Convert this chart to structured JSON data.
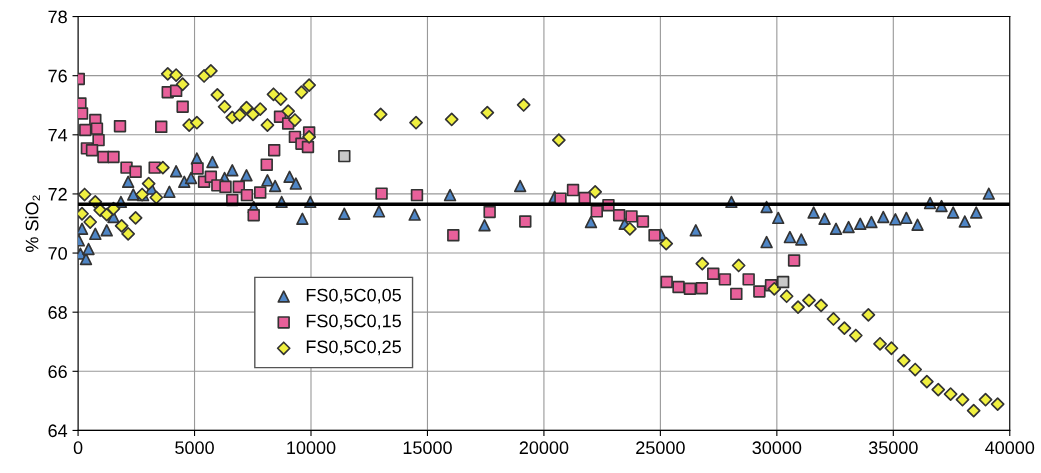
{
  "chart_data": {
    "type": "scatter",
    "ylabel": "% SiO₂",
    "xlim": [
      0,
      40000
    ],
    "xticks": [
      0,
      5000,
      10000,
      15000,
      20000,
      25000,
      30000,
      35000,
      40000
    ],
    "ylim": [
      64,
      78
    ],
    "yticks": [
      64,
      66,
      68,
      70,
      72,
      74,
      76,
      78
    ],
    "grid": true,
    "legend": "bottom left",
    "ref_lines": [
      {
        "axis": "y",
        "value": 71.65,
        "color": "#000000",
        "line_style": "solid"
      }
    ],
    "series": [
      {
        "name": "FS0,5C0,05",
        "color": "#4f86c6",
        "marker": "triangle",
        "x": [
          30,
          100,
          340,
          450,
          170,
          740,
          1230,
          1520,
          1840,
          2150,
          2370,
          2790,
          3150,
          3920,
          4210,
          4560,
          4850,
          5100,
          5770,
          6290,
          6620,
          7230,
          7540,
          8130,
          8460,
          8740,
          9080,
          9350,
          9630,
          9970,
          11430,
          12920,
          14450,
          15970,
          17450,
          18980,
          20460,
          22020,
          23470,
          25030,
          26520,
          28050,
          29560,
          29560,
          30060,
          30560,
          31050,
          31580,
          32050,
          32540,
          33080,
          33580,
          34060,
          34570,
          35090,
          35560,
          36040,
          36580,
          37070,
          37570,
          38070,
          38560,
          39100
        ],
        "values": [
          70.43,
          69.98,
          69.8,
          70.14,
          70.82,
          70.65,
          70.77,
          71.22,
          71.73,
          72.41,
          71.98,
          71.96,
          72.18,
          72.07,
          72.77,
          72.41,
          72.54,
          73.2,
          73.08,
          72.54,
          72.8,
          72.63,
          71.56,
          72.46,
          72.27,
          71.73,
          72.58,
          72.35,
          71.16,
          71.73,
          71.33,
          71.41,
          71.3,
          71.96,
          70.94,
          72.27,
          71.9,
          71.05,
          70.99,
          70.62,
          70.77,
          71.73,
          71.56,
          70.37,
          71.19,
          70.54,
          70.46,
          71.37,
          71.16,
          70.82,
          70.88,
          70.99,
          71.05,
          71.22,
          71.14,
          71.19,
          70.96,
          71.69,
          71.59,
          71.37,
          71.07,
          71.37,
          72.01
        ]
      },
      {
        "name": "FS0,5C0,15",
        "color": "#e8609a",
        "marker": "square",
        "x": [
          30,
          100,
          170,
          740,
          810,
          880,
          310,
          380,
          600,
          1800,
          1090,
          1520,
          2080,
          2470,
          3570,
          3290,
          3850,
          4210,
          4490,
          5130,
          5410,
          5700,
          5980,
          6330,
          6900,
          6620,
          7250,
          7820,
          7540,
          8100,
          8420,
          8670,
          9020,
          9310,
          9590,
          9870,
          9920,
          13030,
          14550,
          16110,
          17670,
          19200,
          20710,
          21250,
          21750,
          22270,
          22770,
          23230,
          23760,
          24250,
          24750,
          25270,
          25780,
          26270,
          26780,
          27270,
          27770,
          28260,
          28790,
          29250,
          29750,
          30740
        ],
        "values": [
          75.89,
          75.06,
          74.72,
          74.5,
          74.21,
          73.82,
          74.16,
          73.54,
          73.48,
          74.29,
          73.25,
          73.25,
          72.89,
          72.75,
          74.27,
          72.89,
          75.44,
          75.49,
          74.95,
          72.86,
          72.41,
          72.58,
          72.29,
          72.24,
          72.24,
          71.79,
          71.96,
          72.05,
          71.28,
          72.99,
          73.48,
          74.61,
          74.38,
          73.93,
          73.7,
          73.59,
          74.08,
          72.01,
          71.96,
          70.6,
          71.39,
          71.07,
          71.84,
          72.13,
          71.86,
          71.41,
          71.62,
          71.28,
          71.24,
          71.07,
          70.6,
          69.02,
          68.85,
          68.79,
          68.81,
          69.3,
          69.11,
          68.62,
          69.11,
          68.7,
          68.91,
          69.75
        ]
      },
      {
        "name": "FS0,5C0,25",
        "color": "#f0f040",
        "marker": "diamond",
        "x": [
          3850,
          4210,
          4490,
          5410,
          5700,
          5980,
          6290,
          6620,
          6940,
          7230,
          7510,
          7820,
          8130,
          8390,
          8700,
          9020,
          9310,
          9590,
          9920,
          9920,
          4770,
          5100,
          3640,
          3030,
          2750,
          3360,
          2470,
          2150,
          1870,
          280,
          740,
          950,
          1230,
          1520,
          520,
          170,
          12990,
          14510,
          16040,
          17570,
          19130,
          20640,
          22200,
          23690,
          25250,
          26800,
          28360,
          29890,
          30420,
          30910,
          31380,
          31900,
          32430,
          32900,
          33390,
          33930,
          34430,
          34920,
          35450,
          35940,
          36440,
          36930,
          37460,
          37970,
          38450,
          38960,
          39480
        ],
        "values": [
          76.06,
          76.02,
          75.71,
          75.99,
          76.16,
          75.35,
          74.95,
          74.59,
          74.67,
          74.92,
          74.69,
          74.87,
          74.33,
          75.37,
          75.21,
          74.8,
          74.5,
          75.44,
          75.68,
          73.93,
          74.33,
          74.41,
          72.89,
          72.35,
          71.98,
          71.88,
          71.19,
          70.65,
          70.92,
          71.98,
          71.73,
          71.45,
          71.3,
          71.5,
          71.05,
          71.33,
          74.69,
          74.41,
          74.52,
          74.75,
          75.01,
          73.82,
          72.07,
          70.82,
          70.32,
          69.64,
          69.58,
          68.79,
          68.54,
          68.17,
          68.4,
          68.23,
          67.77,
          67.46,
          67.21,
          67.91,
          66.93,
          66.78,
          66.36,
          66.06,
          65.65,
          65.38,
          65.23,
          65.04,
          64.67,
          65.04,
          64.89
        ]
      },
      {
        "color": "#c8c8c8",
        "marker": "square",
        "x": [
          11430,
          30270
        ],
        "values": [
          73.28,
          69.02
        ]
      }
    ]
  }
}
